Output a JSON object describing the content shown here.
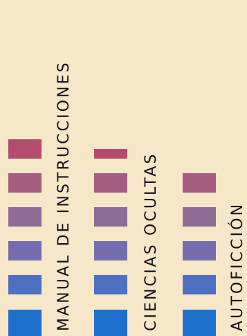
{
  "columns": [
    {
      "id": "manual",
      "label": "MANUAL DE INSTRUCCIONES",
      "blocks": [
        {
          "color": "#b34d6e"
        },
        {
          "color": "#a55e80"
        },
        {
          "color": "#8f6c98"
        },
        {
          "color": "#746eb0"
        },
        {
          "color": "#4f70c2"
        },
        {
          "color": "#1f70cd"
        }
      ]
    },
    {
      "id": "ciencias",
      "label": "CIENCIAS OCULTAS",
      "blocks": [
        {
          "color": "#b34d6e"
        },
        {
          "color": "#a55e80"
        },
        {
          "color": "#8f6c98"
        },
        {
          "color": "#746eb0"
        },
        {
          "color": "#4f70c2"
        },
        {
          "color": "#1f70cd"
        }
      ]
    },
    {
      "id": "autoficcion",
      "label": "AUTOFICCIÓN",
      "blocks": [
        {
          "color": "#a55e80"
        },
        {
          "color": "#8f6c98"
        },
        {
          "color": "#746eb0"
        },
        {
          "color": "#4f70c2"
        },
        {
          "color": "#1f70cd"
        }
      ]
    }
  ]
}
